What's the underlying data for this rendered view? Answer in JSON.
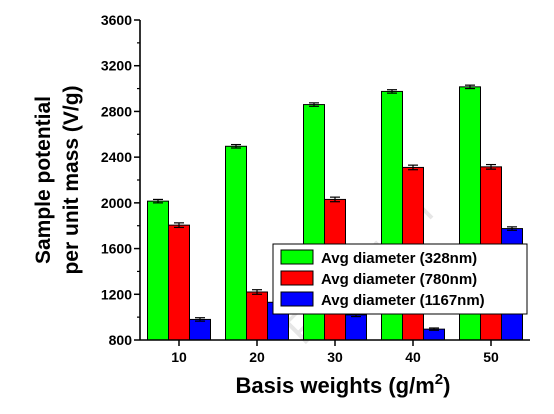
{
  "chart_data": {
    "type": "bar",
    "categories": [
      "10",
      "20",
      "30",
      "40",
      "50"
    ],
    "series": [
      {
        "name": "Avg diameter (328nm)",
        "color": "#00ff00",
        "values": [
          2015,
          2495,
          2860,
          2975,
          3015
        ],
        "errors": [
          15,
          15,
          15,
          15,
          15
        ]
      },
      {
        "name": "Avg diameter (780nm)",
        "color": "#ff0000",
        "values": [
          1805,
          1220,
          2030,
          2310,
          2315
        ],
        "errors": [
          20,
          20,
          20,
          20,
          20
        ]
      },
      {
        "name": "Avg diameter (1167nm)",
        "color": "#0000ff",
        "values": [
          980,
          1130,
          1020,
          895,
          1775
        ],
        "errors": [
          15,
          15,
          15,
          10,
          15
        ]
      }
    ],
    "xlabel_main": "Basis weights (g/m",
    "xlabel_sup": "2",
    "xlabel_end": ")",
    "ylabel_line1": "Sample potential",
    "ylabel_line2": "per unit mass (V/g)",
    "ylim": [
      800,
      3600
    ],
    "yticks": [
      "800",
      "1200",
      "1600",
      "2000",
      "2400",
      "2800",
      "3200",
      "3600"
    ],
    "legend_position": "lower-right",
    "grid": false,
    "watermark": "Pre-Proof"
  }
}
